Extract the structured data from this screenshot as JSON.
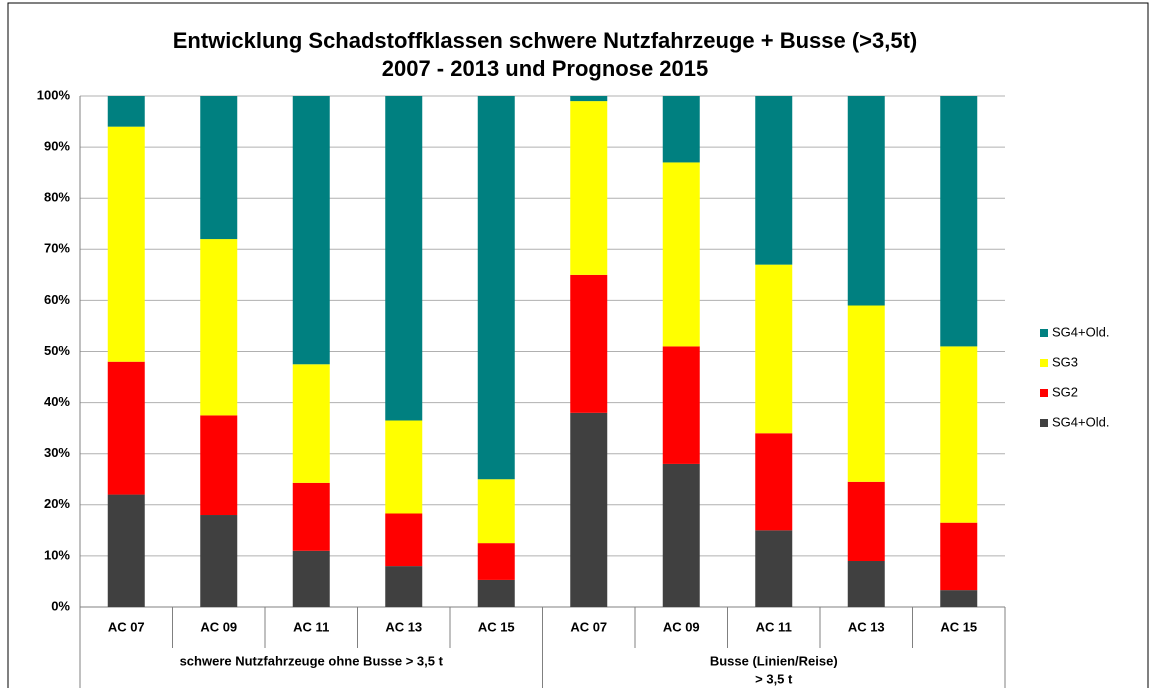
{
  "chart_data": {
    "type": "stacked_bar",
    "title": "Entwicklung Schadstoffklassen schwere Nutzfahrzeuge + Busse (>3,5t)",
    "subtitle": "2007 - 2013 und Prognose 2015",
    "groups": [
      {
        "label": [
          "schwere Nutzfahrzeuge ohne Busse > 3,5 t"
        ],
        "categories": [
          "AC 07",
          "AC 09",
          "AC 11",
          "AC 13",
          "AC 15"
        ]
      },
      {
        "label": [
          "Busse (Linien/Reise)",
          "> 3,5 t"
        ],
        "categories": [
          "AC 07",
          "AC 09",
          "AC 11",
          "AC 13",
          "AC 15"
        ]
      }
    ],
    "series": [
      {
        "name": "SG4+Old.",
        "color": "#404040",
        "values": [
          22,
          18,
          11,
          8,
          5.3,
          38,
          28,
          15,
          9,
          3.3
        ]
      },
      {
        "name": "SG2",
        "color": "#ff0000",
        "values": [
          26,
          19.5,
          13.3,
          10.3,
          7.2,
          27,
          23,
          19,
          15.5,
          13.2
        ]
      },
      {
        "name": "SG3",
        "color": "#ffff00",
        "values": [
          46,
          34.5,
          23.2,
          18.2,
          12.5,
          34,
          36,
          33,
          34.5,
          34.5
        ]
      },
      {
        "name": "SG4+Old.",
        "color": "#008080",
        "values": [
          6,
          28,
          52.5,
          63.5,
          75,
          1,
          13,
          33,
          41,
          49
        ]
      }
    ],
    "ylim": [
      0,
      100
    ],
    "yticks": [
      {
        "value": 0,
        "label": "0%"
      },
      {
        "value": 10,
        "label": "10%"
      },
      {
        "value": 20,
        "label": "20%"
      },
      {
        "value": 30,
        "label": "30%"
      },
      {
        "value": 40,
        "label": "40%"
      },
      {
        "value": 50,
        "label": "50%"
      },
      {
        "value": 60,
        "label": "60%"
      },
      {
        "value": 70,
        "label": "70%"
      },
      {
        "value": 80,
        "label": "80%"
      },
      {
        "value": 90,
        "label": "90%"
      },
      {
        "value": 100,
        "label": "100%"
      }
    ],
    "grid": true,
    "legend": "right"
  }
}
